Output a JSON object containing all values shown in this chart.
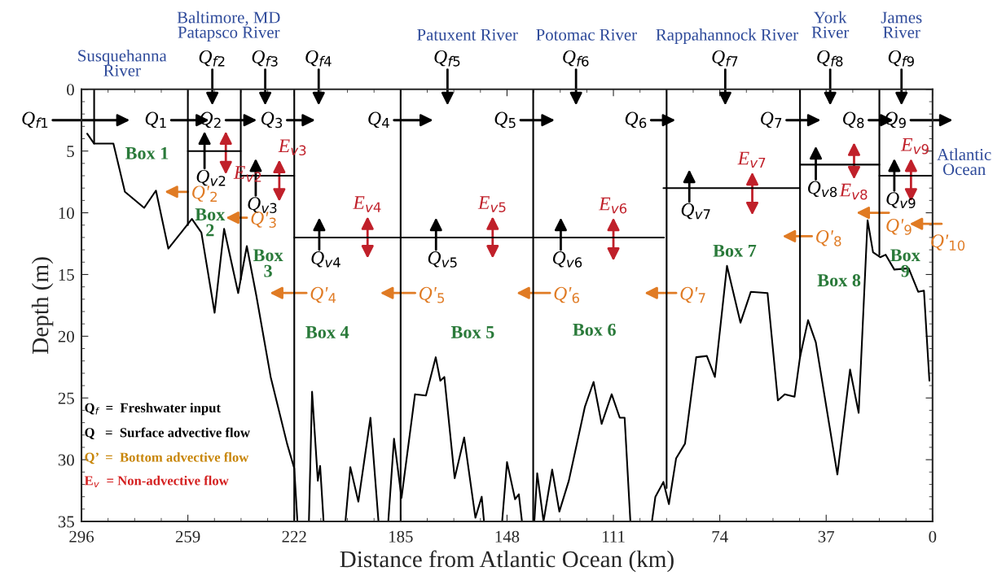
{
  "chart_data": {
    "type": "line",
    "xlabel": "Distance from Atlantic Ocean (km)",
    "ylabel": "Depth (m)",
    "xlim": [
      296,
      0
    ],
    "ylim": [
      35,
      0
    ],
    "xticks": [
      296,
      259,
      222,
      185,
      148,
      111,
      74,
      37,
      0
    ],
    "yticks": [
      0,
      5,
      10,
      15,
      20,
      25,
      30,
      35
    ],
    "series": [
      {
        "type": "line",
        "color": "#000000",
        "x": [
          294.0,
          291.6,
          284.9,
          280.9,
          274.2,
          270.1,
          265.8,
          261.0,
          257.6,
          254.3,
          249.7,
          246.4,
          241.5,
          238.5,
          235.2,
          230.2,
          224.5,
          222.0,
          220.9,
          218.9,
          216.9,
          215.8,
          213.8,
          213.0,
          211.8,
          208.0,
          204.2,
          202.5,
          199.7,
          195.5,
          192.7,
          191.0,
          189.3,
          187.3,
          184.7,
          180.0,
          176.2,
          172.8,
          171.2,
          169.8,
          166.2,
          162.9,
          159.0,
          156.8,
          156.0,
          152.8,
          149.7,
          148.0,
          145.2,
          143.9,
          142.8,
          140.6,
          138.5,
          137.5,
          135.3,
          132.3,
          129.8,
          126.5,
          120.9,
          117.9,
          115.1,
          111.6,
          108.8,
          107.1,
          105.1,
          101.3,
          97.6,
          96.4,
          93.6,
          91.7,
          89.2,
          86.1,
          82.2,
          78.5,
          75.7,
          71.5,
          66.8,
          63.2,
          57.4,
          53.8,
          51.4,
          48.0,
          46.1,
          43.3,
          40.6,
          33.1,
          28.7,
          25.7,
          22.6,
          20.7,
          18.2,
          16.3,
          13.3,
          8.3,
          5.0,
          3.0,
          1.1
        ],
        "values": [
          3.6,
          4.4,
          4.4,
          8.3,
          9.6,
          8.2,
          12.9,
          11.5,
          10.5,
          11.6,
          18.1,
          11.3,
          16.5,
          12.7,
          16.7,
          23.3,
          28.7,
          30.7,
          35,
          null,
          35,
          24.5,
          31.7,
          30.5,
          35,
          null,
          35,
          30.6,
          33.4,
          26.6,
          35,
          null,
          35,
          28.3,
          33.1,
          24.7,
          24.8,
          21.7,
          23.6,
          23.3,
          31.5,
          28.2,
          34.7,
          33.0,
          35,
          null,
          35,
          30.2,
          33.2,
          32.8,
          35,
          null,
          35,
          31.1,
          35,
          30.8,
          34.2,
          31.7,
          25.7,
          23.7,
          27.1,
          24.7,
          26.6,
          26.6,
          35,
          null,
          35,
          33.0,
          31.8,
          33.6,
          29.9,
          28.7,
          21.7,
          21.6,
          23.3,
          14.3,
          18.9,
          16.4,
          16.5,
          25.2,
          24.7,
          24.9,
          21.7,
          18.7,
          20.5,
          31.2,
          22.7,
          26.2,
          10.6,
          13.2,
          13.6,
          13.4,
          14.6,
          14.5,
          16.4,
          16.3,
          23.6
        ]
      },
      {
        "type": "line",
        "color": "#000000",
        "x": [
          291.6,
          291.6
        ],
        "values": [
          0,
          4.4
        ]
      },
      {
        "type": "line",
        "color": "#000000",
        "x": [
          259,
          259
        ],
        "values": [
          0,
          11.0
        ]
      },
      {
        "type": "line",
        "color": "#000000",
        "x": [
          259,
          240.6
        ],
        "values": [
          5.0,
          5.0
        ]
      },
      {
        "type": "line",
        "color": "#000000",
        "x": [
          240.6,
          240.6
        ],
        "values": [
          0,
          15.4
        ]
      },
      {
        "type": "line",
        "color": "#000000",
        "x": [
          240.6,
          222
        ],
        "values": [
          7.0,
          7.0
        ]
      },
      {
        "type": "line",
        "color": "#000000",
        "x": [
          222,
          222
        ],
        "values": [
          0,
          35
        ]
      },
      {
        "type": "line",
        "color": "#000000",
        "x": [
          222,
          93.4
        ],
        "values": [
          12.0,
          12.0
        ]
      },
      {
        "type": "line",
        "color": "#000000",
        "x": [
          185,
          185
        ],
        "values": [
          0,
          35
        ]
      },
      {
        "type": "line",
        "color": "#000000",
        "x": [
          138.9,
          138.9
        ],
        "values": [
          0,
          35
        ]
      },
      {
        "type": "line",
        "color": "#000000",
        "x": [
          92.5,
          92.5
        ],
        "values": [
          0,
          32.3
        ]
      },
      {
        "type": "line",
        "color": "#000000",
        "x": [
          93.6,
          46.1
        ],
        "values": [
          8.0,
          8.0
        ]
      },
      {
        "type": "line",
        "color": "#000000",
        "x": [
          46.1,
          46.1
        ],
        "values": [
          0,
          21.7
        ]
      },
      {
        "type": "line",
        "color": "#000000",
        "x": [
          46.1,
          18.5
        ],
        "values": [
          6.1,
          6.1
        ]
      },
      {
        "type": "line",
        "color": "#000000",
        "x": [
          18.5,
          18.5
        ],
        "values": [
          0,
          13.4
        ]
      },
      {
        "type": "line",
        "color": "#000000",
        "x": [
          18.5,
          0
        ],
        "values": [
          7.0,
          7.0
        ]
      }
    ],
    "annotations": [
      "Susquehanna\nRiver",
      "Baltimore, MD\nPatapsco River",
      "Patuxent River",
      "Potomac River",
      "Rappahannock River",
      "York\nRiver",
      "James\nRiver",
      "Atlantic\nOcean",
      "Box 1",
      "Box\n2",
      "Box\n3",
      "Box 4",
      "Box 5",
      "Box 6",
      "Box 7",
      "Box 8",
      "Box\n9",
      "Q$_{f}$  =  Freshwater input",
      "Q   =  Surface advective flow",
      "Q’  =  Bottom advective flow",
      "E$_{v}$  = Non-advective flow",
      "Q$_{f1}$",
      "Q$_{1}$",
      "Q$_{2}$",
      "Q$_{3}$",
      "Q$_{4}$",
      "Q$_{5}$",
      "Q$_{6}$",
      "Q$_{7}$",
      "Q$_{8}$",
      "Q$_{9}$",
      "Q$_{f2}$",
      "Q$_{f3}$",
      "Q$_{f4}$",
      "Q$_{f5}$",
      "Q$_{f6}$",
      "Q$_{f7}$",
      "Q$_{f8}$",
      "Q$_{f9}$",
      "Q$_{v2}$",
      "Q$_{v3}$",
      "Q$_{v4}$",
      "Q$_{v5}$",
      "Q$_{v6}$",
      "Q$_{v7}$",
      "Q$_{v8}$",
      "Q$_{v9}$",
      "E$_{v2}$",
      "E$_{v3}$",
      "E$_{v4}$",
      "E$_{v5}$",
      "E$_{v6}$",
      "E$_{v7}$",
      "E$_{v8}$",
      "E$_{v9}$",
      "Q'$_{2}$",
      "Q'$_{3}$",
      "Q'$_{4}$",
      "Q'$_{5}$",
      "Q'$_{6}$",
      "Q'$_{7}$",
      "Q'$_{8}$",
      "Q'$_{9}$",
      "Q'$_{10}$"
    ]
  }
}
